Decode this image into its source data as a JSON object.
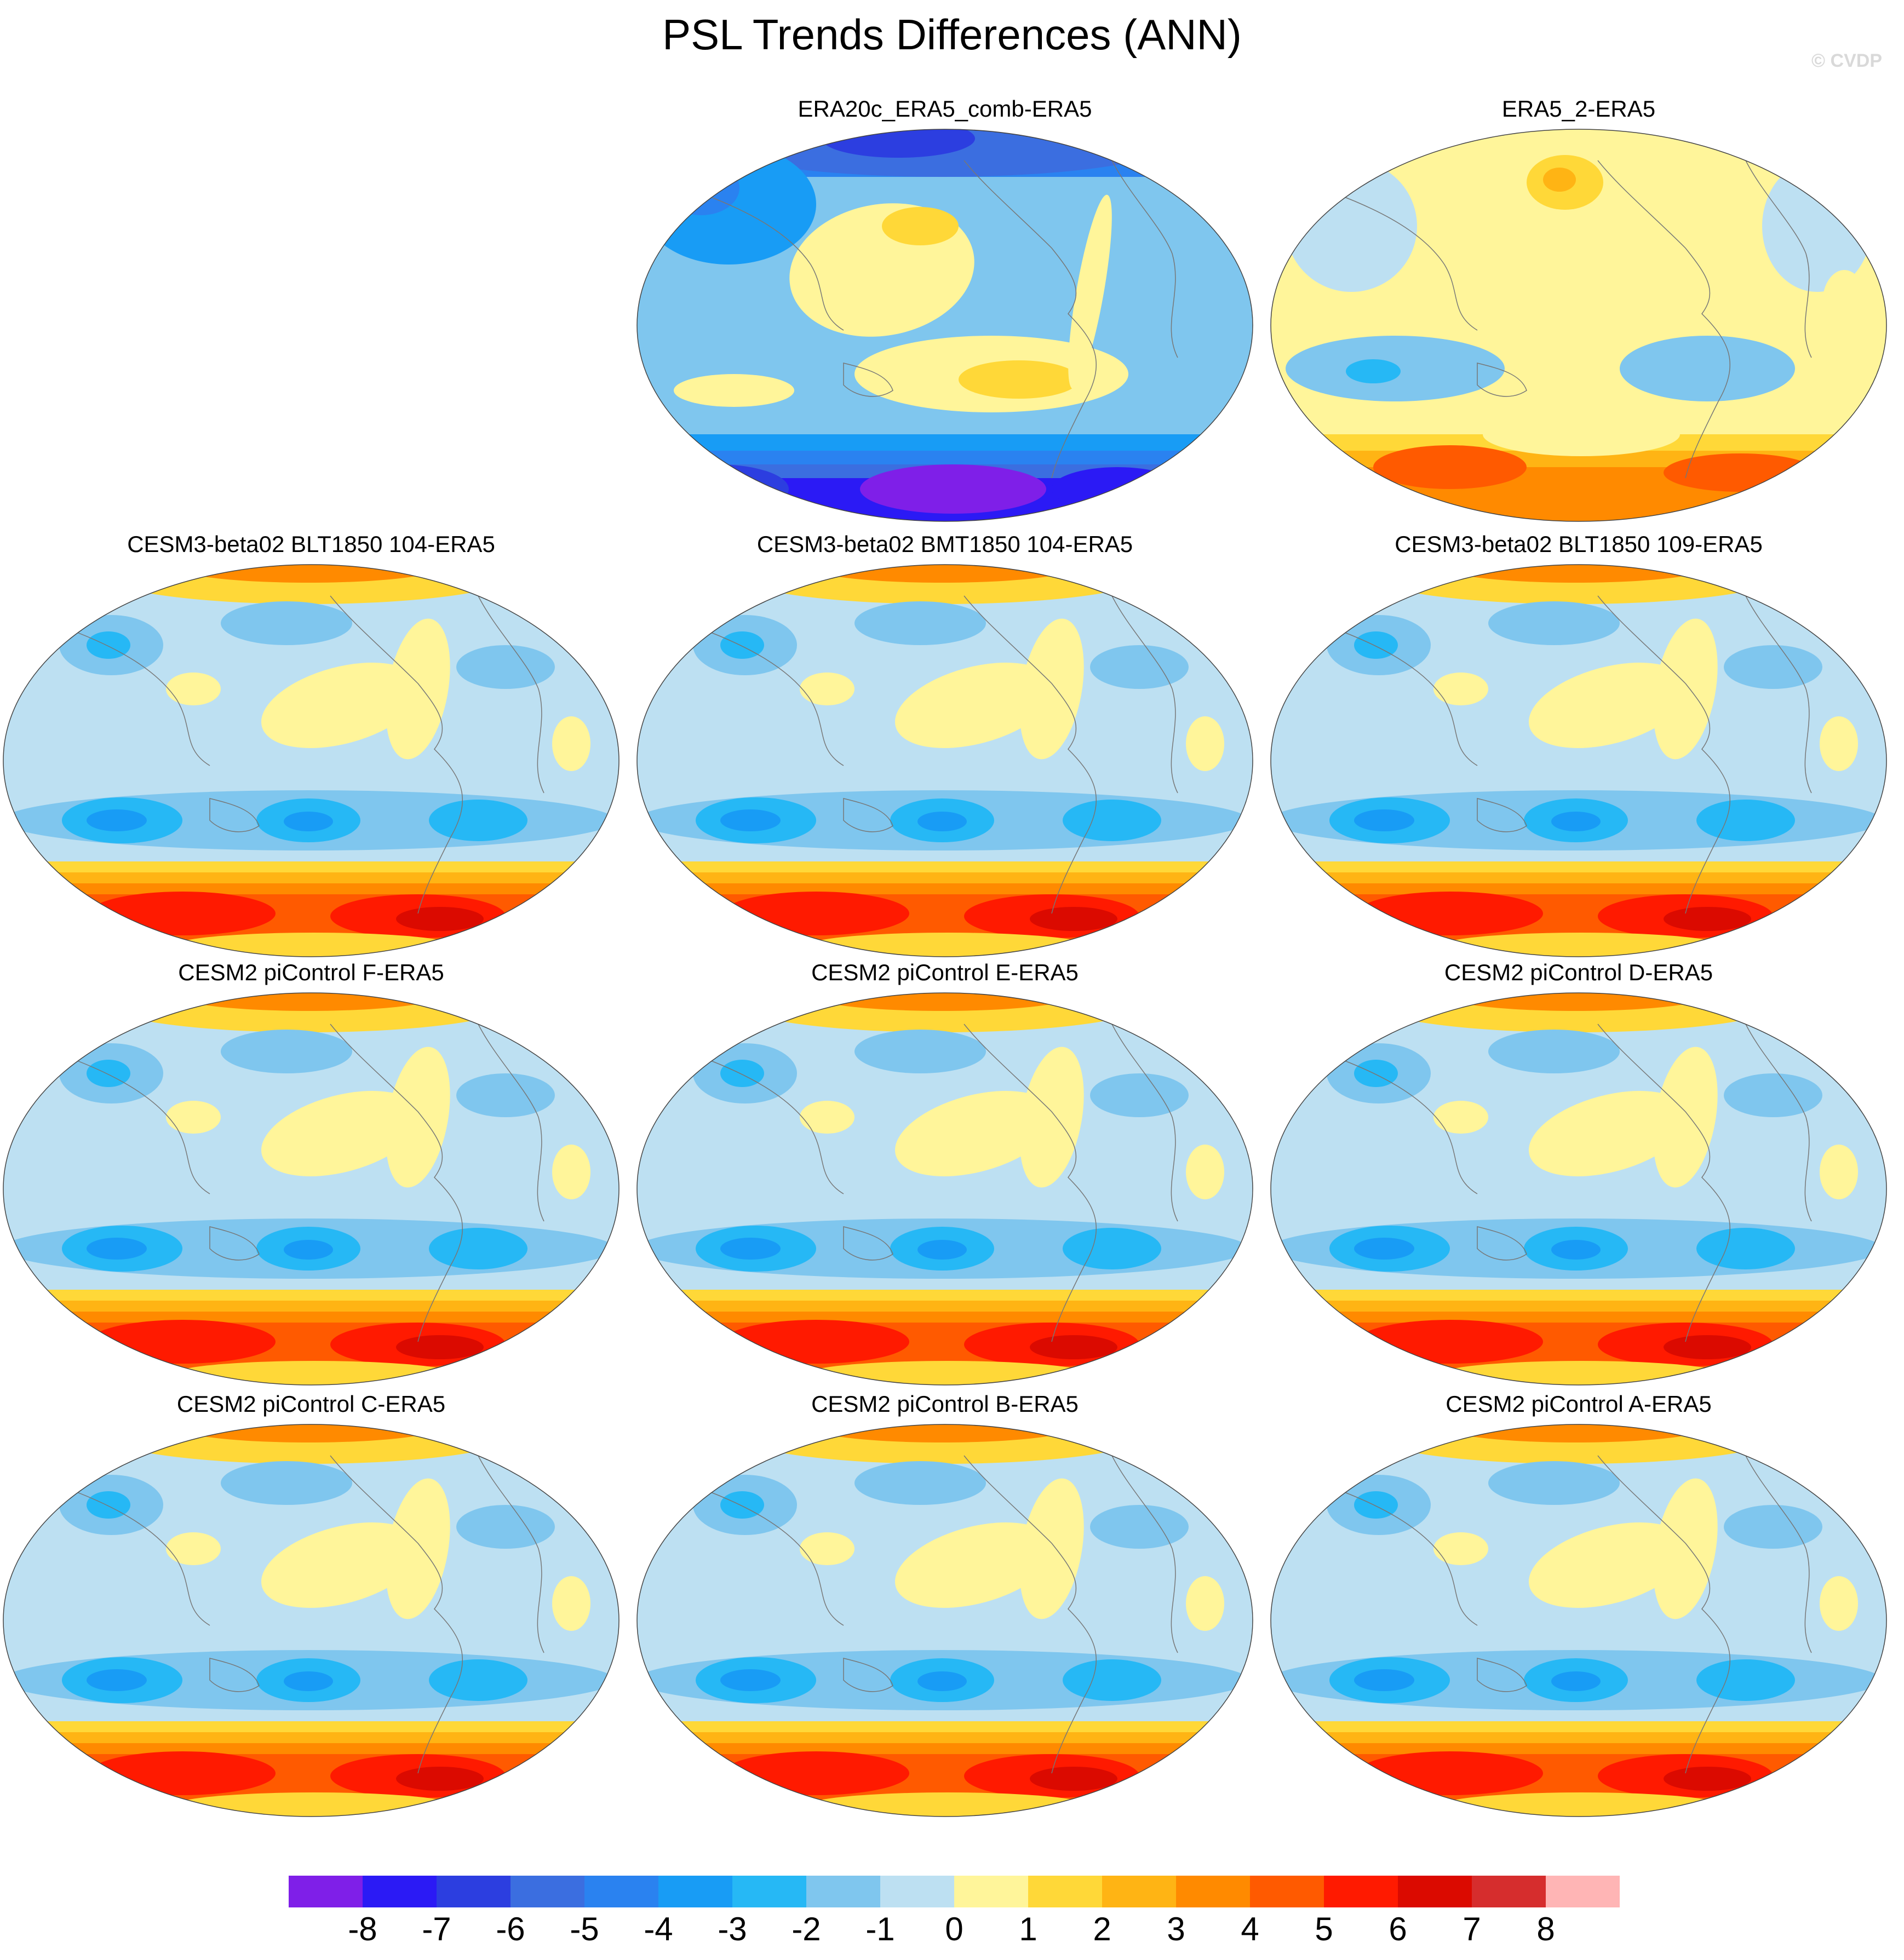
{
  "title": "PSL Trends Differences (ANN)",
  "watermark": "© CVDP",
  "panels": [
    {
      "title": "ERA20c_ERA5_comb-ERA5",
      "pattern": "reanalysis20c"
    },
    {
      "title": "ERA5_2-ERA5",
      "pattern": "reanalysis5"
    },
    {
      "title": "CESM3-beta02 BLT1850 104-ERA5",
      "pattern": "model"
    },
    {
      "title": "CESM3-beta02 BMT1850 104-ERA5",
      "pattern": "model"
    },
    {
      "title": "CESM3-beta02 BLT1850 109-ERA5",
      "pattern": "model"
    },
    {
      "title": "CESM2 piControl F-ERA5",
      "pattern": "model"
    },
    {
      "title": "CESM2 piControl E-ERA5",
      "pattern": "model"
    },
    {
      "title": "CESM2 piControl D-ERA5",
      "pattern": "model"
    },
    {
      "title": "CESM2 piControl C-ERA5",
      "pattern": "model"
    },
    {
      "title": "CESM2 piControl B-ERA5",
      "pattern": "model"
    },
    {
      "title": "CESM2 piControl A-ERA5",
      "pattern": "model"
    }
  ],
  "colorbar": {
    "labels": [
      "-8",
      "-7",
      "-6",
      "-5",
      "-4",
      "-3",
      "-2",
      "-1",
      "0",
      "1",
      "2",
      "3",
      "4",
      "5",
      "6",
      "7",
      "8"
    ],
    "colors": [
      "#7f1fe8",
      "#2b1af5",
      "#2c3ee0",
      "#3b6ee0",
      "#2a82f0",
      "#189cf5",
      "#26b8f5",
      "#7fc6ee",
      "#bde0f2",
      "#fff59a",
      "#ffd838",
      "#ffb414",
      "#ff8a00",
      "#ff5a00",
      "#ff1a00",
      "#db0a00",
      "#d62d2d",
      "#ffb5b5"
    ]
  }
}
